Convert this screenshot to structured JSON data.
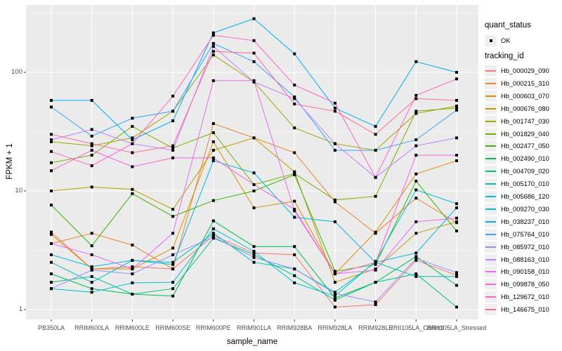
{
  "axis": {
    "y_label": "FPKM + 1",
    "x_label": "sample_name",
    "y_ticks": [
      {
        "label": "100",
        "value": 100
      },
      {
        "label": "10",
        "value": 10
      },
      {
        "label": "1",
        "value": 1
      }
    ]
  },
  "legend": {
    "quant_status_title": "quant_status",
    "quant_status_items": [
      {
        "label": "OK",
        "symbol": "point",
        "color": "#000000"
      }
    ],
    "tracking_id_title": "tracking_id"
  },
  "colors": {
    "panel_bg": "#EBEBEB",
    "grid": "#FFFFFF",
    "tick_text": "#4D4D4D",
    "tick_mark": "#333333",
    "point": "#000000",
    "legend_key_bg": "#EFEFEF"
  },
  "chart_data": {
    "type": "line",
    "title": "",
    "xlabel": "sample_name",
    "ylabel": "FPKM + 1",
    "y_scale": "log10",
    "ylim": [
      1,
      400
    ],
    "y_ticks": [
      1,
      10,
      100
    ],
    "grid": true,
    "legend_position": "right",
    "point_shape": "filled-square",
    "categories": [
      "PB350LA",
      "RRIM600LA",
      "RRIM600LE",
      "RRIM600SE",
      "RRIM600PE",
      "RRIM901LA",
      "RRIM928BA",
      "RRIM928LA",
      "RRIM928LE",
      "RRII105LA_Control",
      "RRII105LA_Stressed"
    ],
    "series": [
      {
        "name": "Hb_000029_090",
        "color": "#F8766D",
        "values": [
          4.5,
          2.2,
          2.3,
          2.2,
          4.2,
          3.0,
          2.9,
          1.05,
          1.1,
          2.6,
          1.95
        ]
      },
      {
        "name": "Hb_000215_310",
        "color": "#EA8331",
        "values": [
          3.6,
          4.4,
          3.5,
          2.2,
          37,
          28,
          21,
          8.1,
          4.4,
          8.7,
          5.4
        ]
      },
      {
        "name": "Hb_000603_070",
        "color": "#D89000",
        "values": [
          4.3,
          2.2,
          2.2,
          3.3,
          26,
          7.2,
          8.2,
          2.0,
          4.5,
          13.9,
          18
        ]
      },
      {
        "name": "Hb_000676_080",
        "color": "#C09B00",
        "values": [
          10,
          10.8,
          10.3,
          7.0,
          22,
          28,
          14.5,
          1.7,
          2.2,
          4.4,
          5.5
        ]
      },
      {
        "name": "Hb_001747_030",
        "color": "#A3A500",
        "values": [
          26,
          24,
          28,
          47,
          140,
          83,
          34,
          25,
          22,
          45,
          52
        ]
      },
      {
        "name": "Hb_001829_040",
        "color": "#7CAE00",
        "values": [
          17.3,
          20,
          35,
          23,
          31,
          11.3,
          14,
          8.4,
          9,
          47,
          50
        ]
      },
      {
        "name": "Hb_002477_050",
        "color": "#39B600",
        "values": [
          7.6,
          3.45,
          9.5,
          6.1,
          8.3,
          10,
          13.7,
          2.1,
          2.4,
          12.1,
          4.6
        ]
      },
      {
        "name": "Hb_002490_010",
        "color": "#00BB4E",
        "values": [
          2.0,
          1.5,
          1.35,
          1.3,
          5.6,
          3.4,
          3.4,
          1.25,
          1.7,
          2.8,
          1.6
        ]
      },
      {
        "name": "Hb_004709_020",
        "color": "#00C087",
        "values": [
          1.7,
          1.9,
          1.35,
          1.5,
          4.0,
          2.9,
          1.93,
          1.2,
          1.7,
          2.0,
          1.05
        ]
      },
      {
        "name": "Hb_005170_010",
        "color": "#00C0B2",
        "values": [
          2.5,
          1.7,
          2.6,
          2.5,
          4.4,
          2.5,
          2.2,
          1.4,
          2.5,
          1.9,
          1.9
        ]
      },
      {
        "name": "Hb_005686_120",
        "color": "#00BFD3",
        "values": [
          1.5,
          1.4,
          1.68,
          1.7,
          4.8,
          3.1,
          1.68,
          1.3,
          2.55,
          10.2,
          7.8
        ]
      },
      {
        "name": "Hb_009270_030",
        "color": "#00B8E7",
        "values": [
          2.9,
          2.3,
          2.6,
          2.4,
          18,
          14.2,
          6.0,
          5.5,
          2.5,
          3.0,
          7.2
        ]
      },
      {
        "name": "Hb_038237_010",
        "color": "#00ACF4",
        "values": [
          58,
          58,
          27,
          39,
          215,
          283,
          143,
          50,
          35,
          123,
          100
        ]
      },
      {
        "name": "Hb_075764_010",
        "color": "#35A2FF",
        "values": [
          51,
          29,
          41,
          47,
          175,
          123,
          62,
          22,
          22,
          27,
          48
        ]
      },
      {
        "name": "Hb_085972_010",
        "color": "#9590FF",
        "values": [
          1.5,
          2.15,
          2.0,
          2.9,
          4.1,
          2.75,
          2.2,
          1.37,
          1.16,
          2.7,
          2.05
        ]
      },
      {
        "name": "Hb_088163_010",
        "color": "#BF80FF",
        "values": [
          27,
          33,
          25,
          22,
          165,
          83,
          60,
          25,
          13,
          24,
          28
        ]
      },
      {
        "name": "Hb_090158_010",
        "color": "#E76BF3",
        "values": [
          3.6,
          2.9,
          2.2,
          4.4,
          85,
          85,
          6.8,
          2.0,
          2.15,
          5.5,
          5.9
        ]
      },
      {
        "name": "Hb_099878_050",
        "color": "#FA62DB",
        "values": [
          14.8,
          22,
          16,
          19,
          19,
          11.3,
          7.0,
          2.0,
          2.5,
          20,
          20
        ]
      },
      {
        "name": "Hb_129672_010",
        "color": "#FF61C9",
        "values": [
          21.5,
          16.3,
          25,
          63,
          205,
          185,
          78,
          55,
          13,
          64,
          88
        ]
      },
      {
        "name": "Hb_146675_010",
        "color": "#FF6A98",
        "values": [
          30,
          25,
          21,
          24,
          150,
          145,
          54,
          47,
          30,
          60,
          58
        ]
      }
    ]
  }
}
